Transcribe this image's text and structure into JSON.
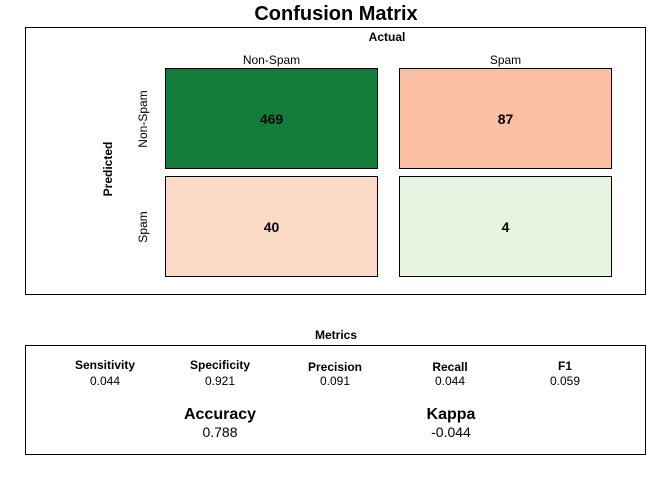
{
  "chart_data": {
    "type": "heatmap",
    "title": "Confusion Matrix",
    "xlabel": "Actual",
    "ylabel": "Predicted",
    "x_categories": [
      "Non-Spam",
      "Spam"
    ],
    "y_categories": [
      "Non-Spam",
      "Spam"
    ],
    "cells": [
      {
        "predicted": "Non-Spam",
        "actual": "Non-Spam",
        "value": 469,
        "color": "#127C3A"
      },
      {
        "predicted": "Non-Spam",
        "actual": "Spam",
        "value": 87,
        "color": "#FBBFA3"
      },
      {
        "predicted": "Spam",
        "actual": "Non-Spam",
        "value": 40,
        "color": "#FDDAC7"
      },
      {
        "predicted": "Spam",
        "actual": "Spam",
        "value": 4,
        "color": "#E5F5E0"
      }
    ]
  },
  "metrics": {
    "title": "Metrics",
    "row1": [
      {
        "name": "Sensitivity",
        "value": "0.044"
      },
      {
        "name": "Specificity",
        "value": "0.921"
      },
      {
        "name": "Precision",
        "value": "0.091"
      },
      {
        "name": "Recall",
        "value": "0.044"
      },
      {
        "name": "F1",
        "value": "0.059"
      }
    ],
    "accuracy": {
      "name": "Accuracy",
      "value": "0.788"
    },
    "kappa": {
      "name": "Kappa",
      "value": "-0.044"
    }
  }
}
